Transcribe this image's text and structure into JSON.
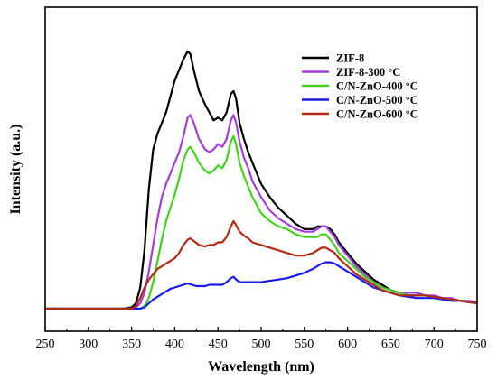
{
  "chart_data": {
    "type": "line",
    "title": "",
    "xlabel": "Wavelength (nm)",
    "ylabel": "Intensity (a.u.)",
    "xlim": [
      250,
      750
    ],
    "ylim": [
      0,
      100
    ],
    "x_ticks": [
      "250",
      "300",
      "350",
      "400",
      "450",
      "500",
      "550",
      "600",
      "650",
      "700",
      "750"
    ],
    "y_ticks_shown": false,
    "grid": false,
    "legend_position": "top-right",
    "series": [
      {
        "name": "ZIF-8",
        "color": "#000000",
        "points": [
          [
            250,
            0
          ],
          [
            340,
            0
          ],
          [
            350,
            0.5
          ],
          [
            355,
            2
          ],
          [
            360,
            8
          ],
          [
            365,
            22
          ],
          [
            370,
            45
          ],
          [
            375,
            60
          ],
          [
            380,
            66
          ],
          [
            385,
            70
          ],
          [
            390,
            74
          ],
          [
            395,
            80
          ],
          [
            400,
            86
          ],
          [
            405,
            90
          ],
          [
            410,
            94
          ],
          [
            415,
            97
          ],
          [
            418,
            96
          ],
          [
            422,
            90
          ],
          [
            428,
            82
          ],
          [
            435,
            77
          ],
          [
            440,
            74
          ],
          [
            445,
            71
          ],
          [
            450,
            72
          ],
          [
            455,
            71
          ],
          [
            460,
            74
          ],
          [
            465,
            81
          ],
          [
            468,
            82
          ],
          [
            471,
            79
          ],
          [
            475,
            70
          ],
          [
            480,
            64
          ],
          [
            485,
            59
          ],
          [
            490,
            55
          ],
          [
            495,
            51
          ],
          [
            500,
            47
          ],
          [
            510,
            42
          ],
          [
            520,
            38
          ],
          [
            530,
            35
          ],
          [
            540,
            32
          ],
          [
            550,
            30
          ],
          [
            560,
            30
          ],
          [
            565,
            31
          ],
          [
            570,
            31
          ],
          [
            575,
            31
          ],
          [
            580,
            30
          ],
          [
            585,
            28
          ],
          [
            590,
            25
          ],
          [
            600,
            21
          ],
          [
            610,
            17
          ],
          [
            620,
            14
          ],
          [
            630,
            11
          ],
          [
            640,
            9
          ],
          [
            650,
            7
          ],
          [
            660,
            6
          ],
          [
            670,
            5
          ],
          [
            680,
            5
          ],
          [
            690,
            5
          ],
          [
            700,
            4
          ],
          [
            710,
            4
          ],
          [
            720,
            3
          ],
          [
            730,
            3
          ],
          [
            740,
            2.5
          ],
          [
            750,
            2
          ]
        ]
      },
      {
        "name": "ZIF-8-300 °C",
        "color": "#a33de0",
        "points": [
          [
            250,
            0
          ],
          [
            350,
            0
          ],
          [
            355,
            0.5
          ],
          [
            360,
            2
          ],
          [
            365,
            6
          ],
          [
            370,
            14
          ],
          [
            375,
            24
          ],
          [
            380,
            34
          ],
          [
            385,
            42
          ],
          [
            390,
            47
          ],
          [
            395,
            51
          ],
          [
            400,
            55
          ],
          [
            405,
            59
          ],
          [
            410,
            65
          ],
          [
            415,
            72
          ],
          [
            418,
            73
          ],
          [
            422,
            70
          ],
          [
            428,
            64
          ],
          [
            435,
            60
          ],
          [
            440,
            59
          ],
          [
            445,
            60
          ],
          [
            450,
            62
          ],
          [
            455,
            61
          ],
          [
            460,
            64
          ],
          [
            465,
            71
          ],
          [
            468,
            73
          ],
          [
            471,
            70
          ],
          [
            475,
            63
          ],
          [
            480,
            57
          ],
          [
            485,
            53
          ],
          [
            490,
            48
          ],
          [
            495,
            45
          ],
          [
            500,
            42
          ],
          [
            510,
            37
          ],
          [
            520,
            34
          ],
          [
            530,
            32
          ],
          [
            540,
            30
          ],
          [
            550,
            29
          ],
          [
            560,
            29
          ],
          [
            565,
            30
          ],
          [
            570,
            31
          ],
          [
            575,
            31
          ],
          [
            580,
            29
          ],
          [
            585,
            27
          ],
          [
            590,
            24
          ],
          [
            600,
            20
          ],
          [
            610,
            16
          ],
          [
            620,
            13
          ],
          [
            630,
            10
          ],
          [
            640,
            8
          ],
          [
            650,
            7
          ],
          [
            660,
            6
          ],
          [
            670,
            6
          ],
          [
            680,
            6
          ],
          [
            690,
            5
          ],
          [
            700,
            5
          ],
          [
            710,
            4
          ],
          [
            720,
            4
          ],
          [
            730,
            3
          ],
          [
            740,
            3
          ],
          [
            750,
            2.5
          ]
        ]
      },
      {
        "name": "C/N-ZnO-400 °C",
        "color": "#43d11c",
        "points": [
          [
            250,
            0
          ],
          [
            360,
            0
          ],
          [
            365,
            1
          ],
          [
            370,
            4
          ],
          [
            375,
            10
          ],
          [
            380,
            18
          ],
          [
            385,
            26
          ],
          [
            390,
            33
          ],
          [
            395,
            38
          ],
          [
            400,
            43
          ],
          [
            405,
            49
          ],
          [
            410,
            56
          ],
          [
            415,
            60
          ],
          [
            418,
            61
          ],
          [
            422,
            59
          ],
          [
            428,
            55
          ],
          [
            435,
            52
          ],
          [
            440,
            51
          ],
          [
            445,
            52
          ],
          [
            450,
            54
          ],
          [
            455,
            53
          ],
          [
            460,
            56
          ],
          [
            465,
            63
          ],
          [
            468,
            65
          ],
          [
            471,
            62
          ],
          [
            475,
            55
          ],
          [
            480,
            50
          ],
          [
            485,
            46
          ],
          [
            490,
            42
          ],
          [
            495,
            39
          ],
          [
            500,
            36
          ],
          [
            510,
            33
          ],
          [
            520,
            31
          ],
          [
            530,
            30
          ],
          [
            540,
            28
          ],
          [
            550,
            27
          ],
          [
            560,
            27
          ],
          [
            565,
            27
          ],
          [
            570,
            28
          ],
          [
            575,
            28
          ],
          [
            580,
            26
          ],
          [
            585,
            24
          ],
          [
            590,
            21
          ],
          [
            600,
            18
          ],
          [
            610,
            15
          ],
          [
            620,
            12
          ],
          [
            630,
            10
          ],
          [
            640,
            8
          ],
          [
            650,
            7
          ],
          [
            660,
            6
          ],
          [
            670,
            5
          ],
          [
            680,
            5
          ],
          [
            690,
            5
          ],
          [
            700,
            4
          ],
          [
            710,
            4
          ],
          [
            720,
            3.5
          ],
          [
            730,
            3
          ],
          [
            740,
            2.5
          ],
          [
            750,
            2
          ]
        ]
      },
      {
        "name": "C/N-ZnO-500 °C",
        "color": "#1a1ae6",
        "points": [
          [
            250,
            0
          ],
          [
            360,
            0
          ],
          [
            365,
            0.5
          ],
          [
            370,
            2
          ],
          [
            375,
            3.5
          ],
          [
            380,
            4.5
          ],
          [
            385,
            5.5
          ],
          [
            390,
            6.5
          ],
          [
            395,
            7.5
          ],
          [
            400,
            8
          ],
          [
            405,
            8.5
          ],
          [
            410,
            9
          ],
          [
            415,
            9.5
          ],
          [
            420,
            9
          ],
          [
            425,
            8.5
          ],
          [
            430,
            8.5
          ],
          [
            435,
            8.5
          ],
          [
            440,
            9
          ],
          [
            445,
            9
          ],
          [
            450,
            9
          ],
          [
            455,
            9
          ],
          [
            460,
            10
          ],
          [
            465,
            11.5
          ],
          [
            468,
            12
          ],
          [
            471,
            11
          ],
          [
            475,
            10
          ],
          [
            480,
            10
          ],
          [
            490,
            10
          ],
          [
            500,
            10
          ],
          [
            510,
            10.5
          ],
          [
            520,
            11
          ],
          [
            530,
            11.5
          ],
          [
            540,
            12.5
          ],
          [
            550,
            13.5
          ],
          [
            560,
            15
          ],
          [
            565,
            16
          ],
          [
            570,
            17
          ],
          [
            575,
            17.5
          ],
          [
            580,
            17.5
          ],
          [
            585,
            17
          ],
          [
            590,
            16
          ],
          [
            600,
            14
          ],
          [
            610,
            12
          ],
          [
            620,
            10
          ],
          [
            630,
            8
          ],
          [
            640,
            7
          ],
          [
            650,
            6
          ],
          [
            660,
            5
          ],
          [
            670,
            4.5
          ],
          [
            680,
            4
          ],
          [
            690,
            4
          ],
          [
            700,
            4
          ],
          [
            710,
            3.5
          ],
          [
            720,
            3
          ],
          [
            730,
            3
          ],
          [
            740,
            2.5
          ],
          [
            750,
            2
          ]
        ]
      },
      {
        "name": "C/N-ZnO-600 °C",
        "color": "#b02a14",
        "points": [
          [
            250,
            0
          ],
          [
            350,
            0
          ],
          [
            355,
            1
          ],
          [
            360,
            4
          ],
          [
            365,
            8
          ],
          [
            370,
            11
          ],
          [
            375,
            13
          ],
          [
            380,
            15
          ],
          [
            385,
            16
          ],
          [
            390,
            17
          ],
          [
            395,
            18
          ],
          [
            400,
            19
          ],
          [
            405,
            21
          ],
          [
            410,
            24
          ],
          [
            415,
            26
          ],
          [
            418,
            26.5
          ],
          [
            422,
            25.5
          ],
          [
            428,
            24
          ],
          [
            435,
            23.5
          ],
          [
            440,
            24
          ],
          [
            445,
            24
          ],
          [
            450,
            25
          ],
          [
            455,
            25
          ],
          [
            460,
            27
          ],
          [
            465,
            31
          ],
          [
            468,
            33
          ],
          [
            471,
            31.5
          ],
          [
            475,
            29
          ],
          [
            480,
            27.5
          ],
          [
            485,
            26.5
          ],
          [
            490,
            25
          ],
          [
            495,
            24.5
          ],
          [
            500,
            24
          ],
          [
            510,
            23
          ],
          [
            520,
            22
          ],
          [
            530,
            21
          ],
          [
            540,
            20
          ],
          [
            550,
            20
          ],
          [
            560,
            21
          ],
          [
            565,
            22
          ],
          [
            570,
            23
          ],
          [
            575,
            23
          ],
          [
            580,
            22
          ],
          [
            585,
            21
          ],
          [
            590,
            19
          ],
          [
            600,
            16
          ],
          [
            610,
            13
          ],
          [
            620,
            11
          ],
          [
            630,
            9
          ],
          [
            640,
            7
          ],
          [
            650,
            6
          ],
          [
            660,
            5
          ],
          [
            670,
            5
          ],
          [
            680,
            5
          ],
          [
            690,
            5
          ],
          [
            700,
            4.5
          ],
          [
            710,
            4
          ],
          [
            720,
            3.5
          ],
          [
            730,
            3
          ],
          [
            740,
            2.5
          ],
          [
            750,
            2
          ]
        ]
      }
    ]
  }
}
